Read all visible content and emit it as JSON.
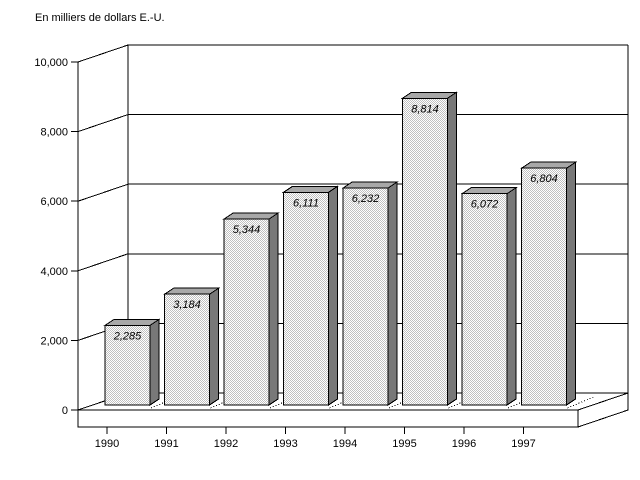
{
  "chart_data": {
    "type": "bar",
    "style": "3d-column",
    "title": "En milliers de dollars E.-U.",
    "categories": [
      "1990",
      "1991",
      "1992",
      "1993",
      "1994",
      "1995",
      "1996",
      "1997"
    ],
    "values": [
      2285,
      3184,
      5344,
      6111,
      6232,
      8814,
      6072,
      6804
    ],
    "bar_labels": [
      "2,285",
      "3,184",
      "5,344",
      "6,111",
      "6,232",
      "8,814",
      "6,072",
      "6,804"
    ],
    "xlabel": "",
    "ylabel": "",
    "ylim": [
      0,
      10000
    ],
    "ytick_step": 2000,
    "ytick_labels": [
      "0",
      "2,000",
      "4,000",
      "6,000",
      "8,000",
      "10,000"
    ],
    "grid": true,
    "legend": "none",
    "colors": {
      "background": "#ffffff",
      "bar_front_base": "#ffffff",
      "bar_front_dither": "#c0c0c0",
      "bar_side": "#787878",
      "bar_top": "#a8a8a8",
      "outline": "#000000",
      "text": "#000000"
    }
  }
}
